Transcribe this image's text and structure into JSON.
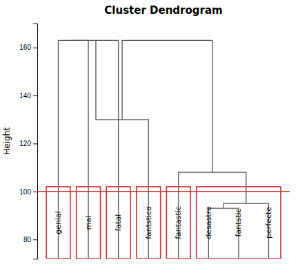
{
  "chart_data": {
    "type": "dendrogram",
    "title": "Cluster Dendrogram",
    "ylabel": "Height",
    "ylim": [
      72,
      170
    ],
    "yticks": [
      80,
      100,
      120,
      140,
      160
    ],
    "grid": false,
    "tick_labels": "y",
    "color": "#555555",
    "tree": {
      "height": 163,
      "children": [
        {
          "height": 130,
          "children": [
            {
              "height": 163,
              "children": [
                {
                  "height": 163,
                  "children": [
                    "genial",
                    "mal"
                  ]
                },
                "fatal"
              ]
            },
            "fantstico"
          ]
        },
        {
          "height": 108,
          "children": [
            "fantastic",
            {
              "height": 95,
              "children": [
                {
                  "height": 93,
                  "children": [
                    "desastre",
                    "fantstic"
                  ]
                },
                "perfecte"
              ]
            }
          ]
        }
      ]
    },
    "cut": {
      "value": 100,
      "color": "#cc3333"
    },
    "clusters": {
      "sizes": [
        1,
        1,
        1,
        1,
        1,
        3
      ],
      "top": 102,
      "color": "#cc3333"
    }
  }
}
